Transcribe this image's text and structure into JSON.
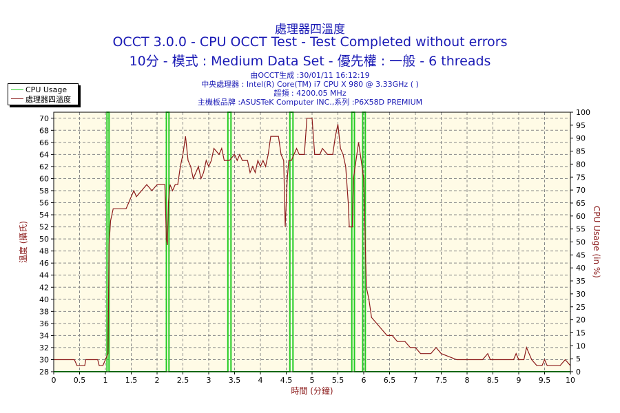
{
  "header": {
    "title1": "處理器四溫度",
    "title2": "OCCT 3.0.0 - CPU OCCT Test - Test Completed without errors",
    "title3": "10分 - 模式 : Medium Data Set - 優先權 : 一般 - 6 threads"
  },
  "info": {
    "line1": "由OCCT生成 :30/01/11 16:12:19",
    "line2": "中央處理器 : Intel(R) Core(TM) i7 CPU X 980 @ 3.33GHz (   )",
    "line3": "超頻 : 4200.05 MHz",
    "line4": "主機板品牌 :ASUSTeK Computer INC.,系列 :P6X58D PREMIUM"
  },
  "colors": {
    "temp": "#8b1a1a",
    "usage": "#22cc22",
    "plot_bg": "#fffbe6",
    "grid": "#888888",
    "text_blue": "#1a1ab5",
    "axis_label": "#8b1a1a"
  },
  "chart_data": {
    "type": "line",
    "xlabel": "時間 (分鐘)",
    "ylabel_left": "溫度 (攝氏)",
    "ylabel_right": "CPU Usage (in %)",
    "xlim": [
      0,
      10
    ],
    "ylim_left": [
      28,
      71
    ],
    "ylim_right": [
      0,
      100
    ],
    "x_ticks": [
      "0",
      "0.5",
      "1",
      "1.5",
      "2",
      "2.5",
      "3",
      "3.5",
      "4",
      "4.5",
      "5",
      "5.5",
      "6",
      "6.5",
      "7",
      "7.5",
      "8",
      "8.5",
      "9",
      "9.5",
      "10"
    ],
    "y_left_ticks": [
      "28",
      "30",
      "32",
      "34",
      "36",
      "38",
      "40",
      "42",
      "44",
      "46",
      "48",
      "50",
      "52",
      "54",
      "56",
      "58",
      "60",
      "62",
      "64",
      "66",
      "68",
      "70"
    ],
    "y_right_ticks": [
      "0",
      "5",
      "10",
      "15",
      "20",
      "25",
      "30",
      "35",
      "40",
      "45",
      "50",
      "55",
      "60",
      "65",
      "70",
      "75",
      "80",
      "85",
      "90",
      "95",
      "100"
    ],
    "grid": true,
    "legend_position": "top-left",
    "series": [
      {
        "name": "CPU Usage",
        "axis": "right",
        "points": [
          [
            0,
            0
          ],
          [
            1.03,
            0
          ],
          [
            1.03,
            100
          ],
          [
            1.07,
            100
          ],
          [
            1.07,
            0
          ],
          [
            2.18,
            0
          ],
          [
            2.18,
            100
          ],
          [
            2.23,
            100
          ],
          [
            2.23,
            0
          ],
          [
            3.37,
            0
          ],
          [
            3.37,
            100
          ],
          [
            3.43,
            100
          ],
          [
            3.43,
            0
          ],
          [
            4.57,
            0
          ],
          [
            4.57,
            100
          ],
          [
            4.63,
            100
          ],
          [
            4.63,
            0
          ],
          [
            5.77,
            0
          ],
          [
            5.77,
            100
          ],
          [
            5.82,
            100
          ],
          [
            5.82,
            0
          ],
          [
            5.98,
            0
          ],
          [
            5.98,
            100
          ],
          [
            6.03,
            100
          ],
          [
            6.03,
            0
          ],
          [
            10,
            0
          ]
        ]
      },
      {
        "name": "處理器四溫度",
        "axis": "left",
        "points": [
          [
            0,
            30
          ],
          [
            0.4,
            30
          ],
          [
            0.45,
            29
          ],
          [
            0.6,
            29
          ],
          [
            0.62,
            30
          ],
          [
            0.85,
            30
          ],
          [
            0.88,
            29
          ],
          [
            0.95,
            29
          ],
          [
            1.0,
            30
          ],
          [
            1.05,
            31
          ],
          [
            1.07,
            49
          ],
          [
            1.1,
            53
          ],
          [
            1.15,
            55
          ],
          [
            1.4,
            55
          ],
          [
            1.45,
            56
          ],
          [
            1.5,
            57
          ],
          [
            1.55,
            58
          ],
          [
            1.6,
            57
          ],
          [
            1.7,
            58
          ],
          [
            1.8,
            59
          ],
          [
            1.9,
            58
          ],
          [
            2.0,
            59
          ],
          [
            2.1,
            59
          ],
          [
            2.15,
            59
          ],
          [
            2.18,
            50
          ],
          [
            2.2,
            49
          ],
          [
            2.22,
            56
          ],
          [
            2.25,
            59
          ],
          [
            2.3,
            58
          ],
          [
            2.35,
            59
          ],
          [
            2.4,
            59
          ],
          [
            2.45,
            62
          ],
          [
            2.5,
            64
          ],
          [
            2.55,
            67
          ],
          [
            2.6,
            63
          ],
          [
            2.65,
            62
          ],
          [
            2.7,
            60
          ],
          [
            2.75,
            61
          ],
          [
            2.8,
            62
          ],
          [
            2.85,
            60
          ],
          [
            2.9,
            61
          ],
          [
            2.95,
            63
          ],
          [
            3.0,
            62
          ],
          [
            3.05,
            63
          ],
          [
            3.1,
            65
          ],
          [
            3.2,
            64
          ],
          [
            3.25,
            65
          ],
          [
            3.3,
            63
          ],
          [
            3.35,
            63
          ],
          [
            3.4,
            63
          ],
          [
            3.5,
            64
          ],
          [
            3.55,
            63
          ],
          [
            3.6,
            64
          ],
          [
            3.65,
            63
          ],
          [
            3.75,
            63
          ],
          [
            3.8,
            61
          ],
          [
            3.85,
            62
          ],
          [
            3.9,
            61
          ],
          [
            3.95,
            63
          ],
          [
            4.0,
            62
          ],
          [
            4.05,
            63
          ],
          [
            4.1,
            62
          ],
          [
            4.15,
            64
          ],
          [
            4.2,
            67
          ],
          [
            4.35,
            67
          ],
          [
            4.4,
            64
          ],
          [
            4.45,
            63
          ],
          [
            4.48,
            52
          ],
          [
            4.52,
            60
          ],
          [
            4.55,
            63
          ],
          [
            4.6,
            63
          ],
          [
            4.7,
            65
          ],
          [
            4.75,
            64
          ],
          [
            4.85,
            64
          ],
          [
            4.9,
            70
          ],
          [
            5.0,
            70
          ],
          [
            5.05,
            64
          ],
          [
            5.15,
            64
          ],
          [
            5.2,
            65
          ],
          [
            5.3,
            64
          ],
          [
            5.4,
            64
          ],
          [
            5.45,
            67
          ],
          [
            5.5,
            69
          ],
          [
            5.55,
            65
          ],
          [
            5.6,
            64
          ],
          [
            5.65,
            62
          ],
          [
            5.7,
            56
          ],
          [
            5.72,
            52
          ],
          [
            5.78,
            52
          ],
          [
            5.8,
            60
          ],
          [
            5.85,
            63
          ],
          [
            5.9,
            66
          ],
          [
            5.95,
            63
          ],
          [
            6.0,
            60
          ],
          [
            6.05,
            42
          ],
          [
            6.1,
            40
          ],
          [
            6.15,
            37
          ],
          [
            6.25,
            36
          ],
          [
            6.35,
            35
          ],
          [
            6.45,
            34
          ],
          [
            6.55,
            34
          ],
          [
            6.65,
            33
          ],
          [
            6.8,
            33
          ],
          [
            6.9,
            32
          ],
          [
            7.0,
            32
          ],
          [
            7.1,
            31
          ],
          [
            7.3,
            31
          ],
          [
            7.4,
            32
          ],
          [
            7.5,
            31
          ],
          [
            7.8,
            30
          ],
          [
            8.3,
            30
          ],
          [
            8.4,
            31
          ],
          [
            8.45,
            30
          ],
          [
            8.9,
            30
          ],
          [
            8.95,
            31
          ],
          [
            9.0,
            30
          ],
          [
            9.1,
            30
          ],
          [
            9.15,
            32
          ],
          [
            9.2,
            31
          ],
          [
            9.25,
            30
          ],
          [
            9.35,
            29
          ],
          [
            9.45,
            29
          ],
          [
            9.5,
            30
          ],
          [
            9.55,
            29
          ],
          [
            9.8,
            29
          ],
          [
            9.9,
            30
          ],
          [
            10.0,
            29
          ]
        ]
      }
    ]
  }
}
